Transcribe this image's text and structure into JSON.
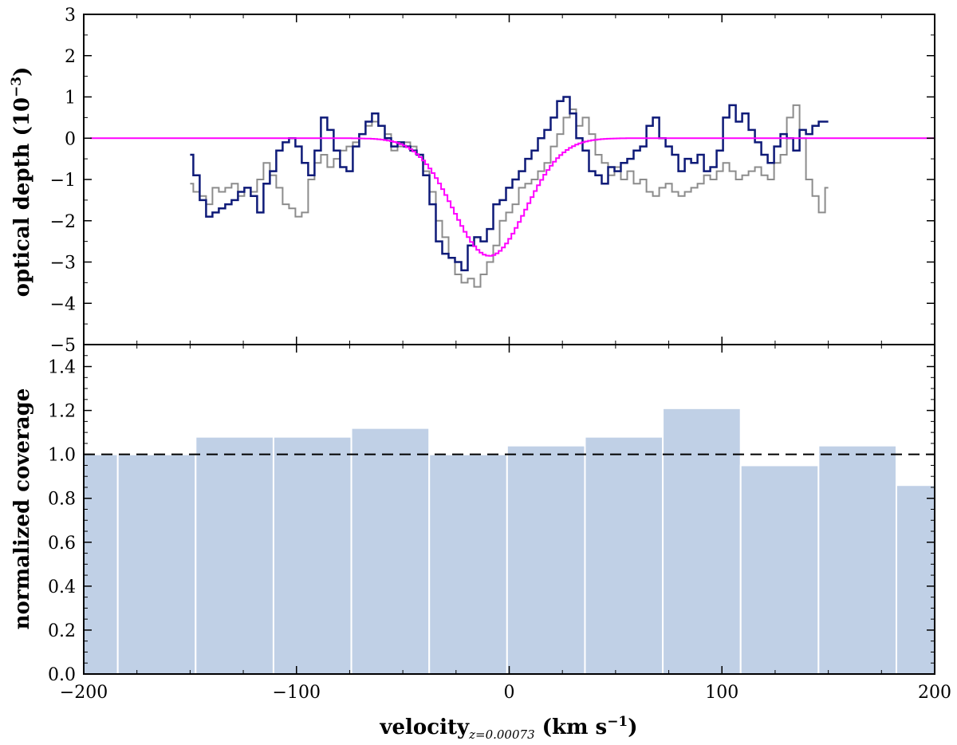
{
  "chart_data": [
    {
      "type": "line",
      "panel": "top",
      "ylabel": "optical depth (10",
      "ylabel_exp": "−3",
      "ylabel_close": ")",
      "xlim": [
        -200,
        200
      ],
      "ylim": [
        -5,
        3
      ],
      "yticks": [
        -5,
        -4,
        -3,
        -2,
        -1,
        0,
        1,
        2,
        3
      ],
      "ytick_labels": [
        "−5",
        "−4",
        "−3",
        "−2",
        "−1",
        "0",
        "1",
        "2",
        "3"
      ],
      "series": [
        {
          "color": "#8c8c8c",
          "style": "steps",
          "x": [
            -150,
            -147,
            -144,
            -141,
            -138,
            -135,
            -132,
            -129,
            -126,
            -123,
            -120,
            -117,
            -114,
            -111,
            -108,
            -105,
            -102,
            -99,
            -96,
            -93,
            -90,
            -87,
            -84,
            -81,
            -78,
            -75,
            -72,
            -69,
            -66,
            -63,
            -60,
            -57,
            -54,
            -51,
            -48,
            -45,
            -42,
            -39,
            -36,
            -33,
            -30,
            -27,
            -24,
            -21,
            -18,
            -15,
            -12,
            -9,
            -6,
            -3,
            0,
            3,
            6,
            9,
            12,
            15,
            18,
            21,
            24,
            27,
            30,
            33,
            36,
            39,
            42,
            45,
            48,
            51,
            54,
            57,
            60,
            63,
            66,
            69,
            72,
            75,
            78,
            81,
            84,
            87,
            90,
            93,
            96,
            99,
            102,
            105,
            108,
            111,
            114,
            117,
            120,
            123,
            126,
            129,
            132,
            135,
            138,
            141,
            144,
            147,
            150
          ],
          "y": [
            -1.1,
            -1.3,
            -1.4,
            -1.6,
            -1.2,
            -1.3,
            -1.2,
            -1.1,
            -1.4,
            -1.2,
            -1.3,
            -1.0,
            -0.6,
            -0.9,
            -1.2,
            -1.6,
            -1.7,
            -1.9,
            -1.8,
            -1.0,
            -0.6,
            -0.4,
            -0.7,
            -0.5,
            -0.3,
            -0.2,
            -0.1,
            0.1,
            0.3,
            0.4,
            0.3,
            0.1,
            -0.3,
            -0.2,
            -0.1,
            -0.2,
            -0.4,
            -0.8,
            -1.3,
            -2.0,
            -2.4,
            -2.9,
            -3.3,
            -3.5,
            -3.4,
            -3.6,
            -3.3,
            -3.0,
            -2.6,
            -2.0,
            -1.8,
            -1.6,
            -1.2,
            -1.1,
            -1.0,
            -0.8,
            -0.6,
            -0.2,
            0.1,
            0.5,
            0.7,
            0.3,
            0.5,
            0.1,
            -0.4,
            -0.6,
            -0.9,
            -0.7,
            -1.0,
            -0.8,
            -1.1,
            -1.0,
            -1.3,
            -1.4,
            -1.2,
            -1.1,
            -1.3,
            -1.4,
            -1.3,
            -1.2,
            -1.1,
            -0.9,
            -1.0,
            -0.8,
            -0.6,
            -0.8,
            -1.0,
            -0.9,
            -0.8,
            -0.7,
            -0.9,
            -1.0,
            -0.6,
            -0.4,
            0.5,
            0.8,
            0.0,
            -1.0,
            -1.4,
            -1.8,
            -1.2
          ]
        },
        {
          "color": "#0e1a78",
          "style": "steps",
          "x": [
            -150,
            -147,
            -144,
            -141,
            -138,
            -135,
            -132,
            -129,
            -126,
            -123,
            -120,
            -117,
            -114,
            -111,
            -108,
            -105,
            -102,
            -99,
            -96,
            -93,
            -90,
            -87,
            -84,
            -81,
            -78,
            -75,
            -72,
            -69,
            -66,
            -63,
            -60,
            -57,
            -54,
            -51,
            -48,
            -45,
            -42,
            -39,
            -36,
            -33,
            -30,
            -27,
            -24,
            -21,
            -18,
            -15,
            -12,
            -9,
            -6,
            -3,
            0,
            3,
            6,
            9,
            12,
            15,
            18,
            21,
            24,
            27,
            30,
            33,
            36,
            39,
            42,
            45,
            48,
            51,
            54,
            57,
            60,
            63,
            66,
            69,
            72,
            75,
            78,
            81,
            84,
            87,
            90,
            93,
            96,
            99,
            102,
            105,
            108,
            111,
            114,
            117,
            120,
            123,
            126,
            129,
            132,
            135,
            138,
            141,
            144,
            147,
            150
          ],
          "y": [
            -0.4,
            -0.9,
            -1.5,
            -1.9,
            -1.8,
            -1.7,
            -1.6,
            -1.5,
            -1.3,
            -1.2,
            -1.4,
            -1.8,
            -1.1,
            -0.8,
            -0.3,
            -0.1,
            0.0,
            -0.2,
            -0.6,
            -0.9,
            -0.3,
            0.5,
            0.2,
            -0.3,
            -0.7,
            -0.8,
            -0.2,
            0.1,
            0.4,
            0.6,
            0.3,
            0.0,
            -0.2,
            -0.1,
            -0.2,
            -0.3,
            -0.4,
            -0.9,
            -1.6,
            -2.5,
            -2.8,
            -2.9,
            -3.0,
            -3.2,
            -2.6,
            -2.4,
            -2.5,
            -2.2,
            -1.6,
            -1.5,
            -1.2,
            -1.0,
            -0.8,
            -0.5,
            -0.3,
            0.0,
            0.2,
            0.5,
            0.9,
            1.0,
            0.6,
            0.0,
            -0.3,
            -0.8,
            -0.9,
            -1.1,
            -0.7,
            -0.8,
            -0.6,
            -0.5,
            -0.3,
            -0.2,
            0.3,
            0.5,
            0.0,
            -0.2,
            -0.4,
            -0.8,
            -0.5,
            -0.6,
            -0.4,
            -0.8,
            -0.7,
            -0.3,
            0.5,
            0.8,
            0.4,
            0.6,
            0.2,
            -0.1,
            -0.4,
            -0.6,
            -0.2,
            0.1,
            0.0,
            -0.3,
            0.2,
            0.1,
            0.3,
            0.4,
            0.4
          ]
        },
        {
          "color": "#ff00ff",
          "style": "fit",
          "amplitude": -2.85,
          "center": -10,
          "sigma": 17,
          "x_range": [
            -197,
            200
          ]
        }
      ]
    },
    {
      "type": "bar",
      "panel": "bottom",
      "xlabel": "velocity",
      "xlabel_sub": "z=0.00073",
      "xlabel_units": " (km s",
      "xlabel_units_exp": "−1",
      "xlabel_units_close": ")",
      "ylabel": "normalized coverage",
      "xlim": [
        -200,
        200
      ],
      "ylim": [
        0,
        1.5
      ],
      "xticks": [
        -200,
        -100,
        0,
        100,
        200
      ],
      "xtick_labels": [
        "−200",
        "−100",
        "0",
        "100",
        "200"
      ],
      "yticks": [
        0.0,
        0.2,
        0.4,
        0.6,
        0.8,
        1.0,
        1.2,
        1.4
      ],
      "ytick_labels": [
        "0.0",
        "0.2",
        "0.4",
        "0.6",
        "0.8",
        "1.0",
        "1.2",
        "1.4"
      ],
      "bin_edges": [
        -200,
        -184,
        -147.4,
        -110.8,
        -74.2,
        -37.6,
        -1,
        35.6,
        72.2,
        108.8,
        145.4,
        182,
        200
      ],
      "values": [
        1.0,
        1.0,
        1.08,
        1.08,
        1.12,
        1.0,
        1.04,
        1.08,
        1.21,
        0.95,
        1.04,
        0.86
      ],
      "bar_color": "#c0d0e6",
      "reference_line": 1.0
    }
  ]
}
